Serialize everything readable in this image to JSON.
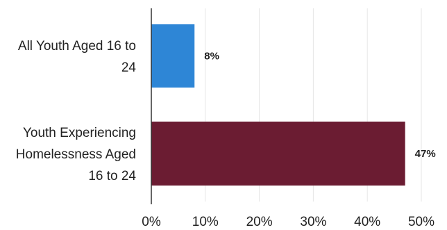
{
  "chart_data": {
    "type": "bar",
    "orientation": "horizontal",
    "categories": [
      [
        "All Youth Aged 16 to",
        "24"
      ],
      [
        "Youth Experiencing",
        "Homelessness Aged",
        "16 to 24"
      ]
    ],
    "values": [
      8,
      47
    ],
    "value_labels": [
      "8%",
      "47%"
    ],
    "bar_colors": [
      "#2e86d6",
      "#6b1c32"
    ],
    "xlim": [
      0,
      50
    ],
    "xticks": [
      "0%",
      "10%",
      "20%",
      "30%",
      "40%",
      "50%"
    ],
    "grid": true,
    "title": "",
    "xlabel": "",
    "ylabel": ""
  }
}
